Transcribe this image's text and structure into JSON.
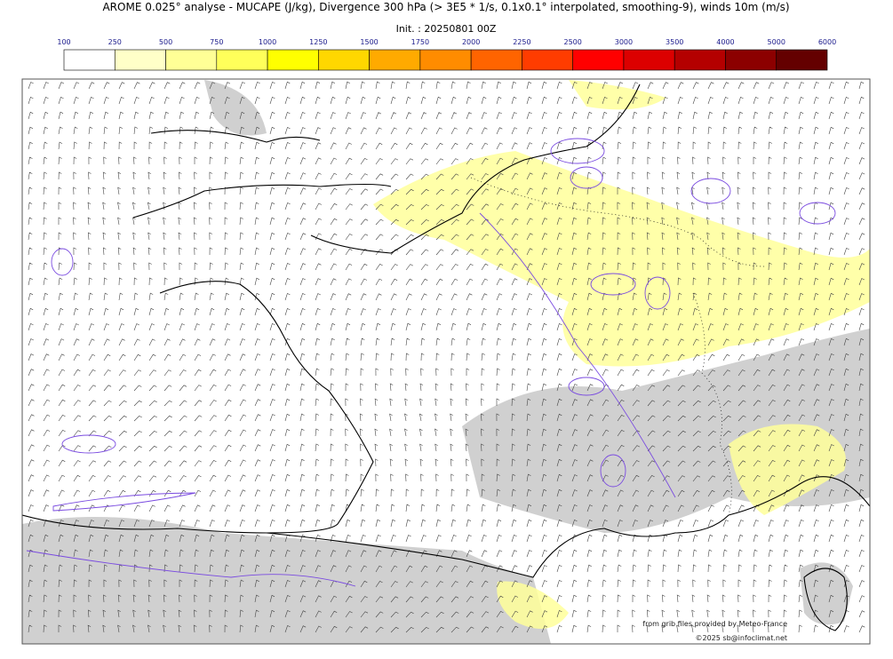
{
  "header": {
    "title": "AROME 0.025° analyse - MUCAPE (J/kg), Divergence 300 hPa (> 3E5 * 1/s, 0.1x0.1° interpolated, smoothing-9), winds 10m (m/s)",
    "init": "Init. : 20250801 00Z"
  },
  "colorbar": {
    "ticks": [
      100,
      250,
      500,
      750,
      1000,
      1250,
      1500,
      1750,
      2000,
      2250,
      2500,
      3000,
      3500,
      4000,
      5000,
      6000
    ],
    "colors": [
      "#ffffff",
      "#ffffc8",
      "#ffff96",
      "#ffff5a",
      "#ffff00",
      "#ffd700",
      "#ffaa00",
      "#ff8c00",
      "#ff6400",
      "#ff3c00",
      "#ff0000",
      "#dc0000",
      "#b40000",
      "#8c0000",
      "#640000"
    ]
  },
  "credits": {
    "source": "from grib files provided by Meteo-France",
    "copyright": "©2025 sb@infoclimat.net"
  }
}
